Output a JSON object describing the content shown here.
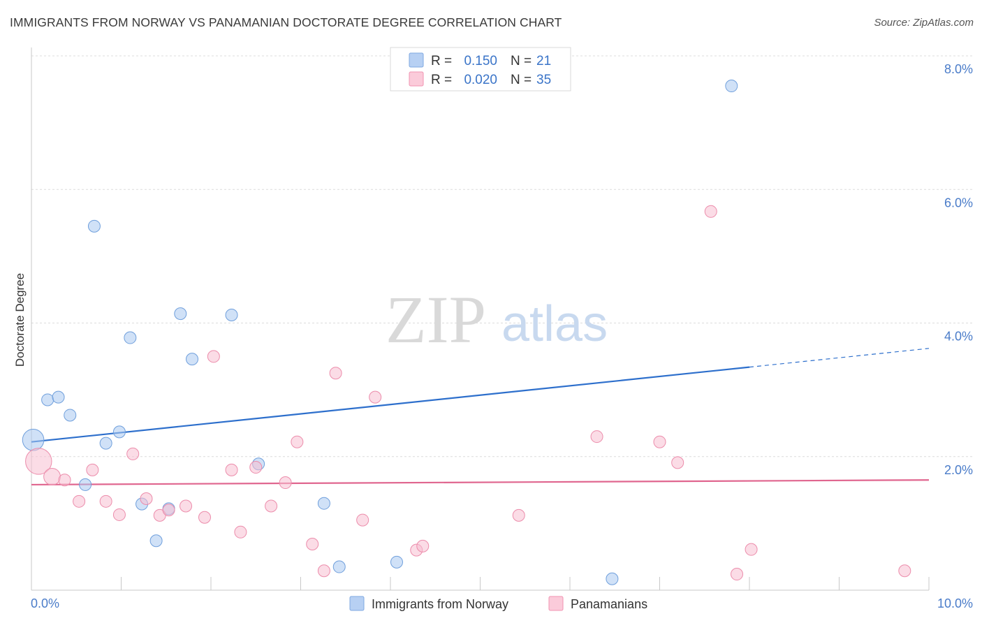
{
  "title": "IMMIGRANTS FROM NORWAY VS PANAMANIAN DOCTORATE DEGREE CORRELATION CHART",
  "source": "Source: ZipAtlas.com",
  "watermark": {
    "zip": "ZIP",
    "atlas": "atlas"
  },
  "chart_data": {
    "type": "scatter",
    "title": "IMMIGRANTS FROM NORWAY VS PANAMANIAN DOCTORATE DEGREE CORRELATION CHART",
    "xlabel": "",
    "ylabel": "Doctorate Degree",
    "xlim": [
      0,
      10
    ],
    "ylim": [
      0,
      8
    ],
    "x_tick_labels": [
      "0.0%",
      "10.0%"
    ],
    "y_ticks": [
      2,
      4,
      6,
      8
    ],
    "y_tick_labels": [
      "2.0%",
      "4.0%",
      "6.0%",
      "8.0%"
    ],
    "grid": true,
    "legend": [
      {
        "r_label": "R =",
        "r_value": "0.150",
        "n_label": "N =",
        "n_value": "21"
      },
      {
        "r_label": "R =",
        "r_value": "0.020",
        "n_label": "N =",
        "n_value": "35"
      }
    ],
    "series": [
      {
        "name": "Immigrants from Norway",
        "color": "#a9c8f0",
        "stroke": "#6f9fdc",
        "line_color": "#2d6fcc",
        "trend": {
          "x": [
            0,
            8
          ],
          "y": [
            2.22,
            3.34
          ],
          "dashed_to_x": 10,
          "dashed_to_y": 3.62
        },
        "points": [
          {
            "x": 0.02,
            "y": 2.25,
            "s": 1.8
          },
          {
            "x": 0.18,
            "y": 2.85,
            "s": 1
          },
          {
            "x": 0.3,
            "y": 2.89,
            "s": 1
          },
          {
            "x": 0.43,
            "y": 2.62,
            "s": 1
          },
          {
            "x": 0.6,
            "y": 1.58,
            "s": 1
          },
          {
            "x": 0.7,
            "y": 5.45,
            "s": 1
          },
          {
            "x": 0.83,
            "y": 2.2,
            "s": 1
          },
          {
            "x": 0.98,
            "y": 2.37,
            "s": 1
          },
          {
            "x": 1.1,
            "y": 3.78,
            "s": 1
          },
          {
            "x": 1.23,
            "y": 1.29,
            "s": 1
          },
          {
            "x": 1.39,
            "y": 0.74,
            "s": 1
          },
          {
            "x": 1.53,
            "y": 1.22,
            "s": 1
          },
          {
            "x": 1.66,
            "y": 4.14,
            "s": 1
          },
          {
            "x": 1.79,
            "y": 3.46,
            "s": 1
          },
          {
            "x": 2.23,
            "y": 4.12,
            "s": 1
          },
          {
            "x": 2.53,
            "y": 1.89,
            "s": 1
          },
          {
            "x": 3.26,
            "y": 1.3,
            "s": 1
          },
          {
            "x": 3.43,
            "y": 0.35,
            "s": 1
          },
          {
            "x": 4.07,
            "y": 0.42,
            "s": 1
          },
          {
            "x": 6.47,
            "y": 0.17,
            "s": 1
          },
          {
            "x": 7.8,
            "y": 7.55,
            "s": 1
          }
        ]
      },
      {
        "name": "Panamanians",
        "color": "#f8c0d2",
        "stroke": "#ec8cab",
        "line_color": "#e0668f",
        "trend": {
          "x": [
            0,
            10
          ],
          "y": [
            1.58,
            1.65
          ]
        },
        "points": [
          {
            "x": 0.08,
            "y": 1.93,
            "s": 2.2
          },
          {
            "x": 0.23,
            "y": 1.7,
            "s": 1.4
          },
          {
            "x": 0.37,
            "y": 1.65,
            "s": 1
          },
          {
            "x": 0.53,
            "y": 1.33,
            "s": 1
          },
          {
            "x": 0.68,
            "y": 1.8,
            "s": 1
          },
          {
            "x": 0.83,
            "y": 1.33,
            "s": 1
          },
          {
            "x": 0.98,
            "y": 1.13,
            "s": 1
          },
          {
            "x": 1.13,
            "y": 2.04,
            "s": 1
          },
          {
            "x": 1.28,
            "y": 1.37,
            "s": 1
          },
          {
            "x": 1.43,
            "y": 1.12,
            "s": 1
          },
          {
            "x": 1.53,
            "y": 1.2,
            "s": 1
          },
          {
            "x": 1.72,
            "y": 1.26,
            "s": 1
          },
          {
            "x": 1.93,
            "y": 1.09,
            "s": 1
          },
          {
            "x": 2.03,
            "y": 3.5,
            "s": 1
          },
          {
            "x": 2.23,
            "y": 1.8,
            "s": 1
          },
          {
            "x": 2.33,
            "y": 0.87,
            "s": 1
          },
          {
            "x": 2.5,
            "y": 1.84,
            "s": 1
          },
          {
            "x": 2.67,
            "y": 1.26,
            "s": 1
          },
          {
            "x": 2.83,
            "y": 1.61,
            "s": 1
          },
          {
            "x": 2.96,
            "y": 2.22,
            "s": 1
          },
          {
            "x": 3.13,
            "y": 0.69,
            "s": 1
          },
          {
            "x": 3.26,
            "y": 0.29,
            "s": 1
          },
          {
            "x": 3.39,
            "y": 3.25,
            "s": 1
          },
          {
            "x": 3.69,
            "y": 1.05,
            "s": 1
          },
          {
            "x": 3.83,
            "y": 2.89,
            "s": 1
          },
          {
            "x": 4.29,
            "y": 0.6,
            "s": 1
          },
          {
            "x": 4.36,
            "y": 0.66,
            "s": 1
          },
          {
            "x": 5.43,
            "y": 1.12,
            "s": 1
          },
          {
            "x": 6.3,
            "y": 2.3,
            "s": 1
          },
          {
            "x": 7.0,
            "y": 2.22,
            "s": 1
          },
          {
            "x": 7.2,
            "y": 1.91,
            "s": 1
          },
          {
            "x": 7.57,
            "y": 5.67,
            "s": 1
          },
          {
            "x": 7.86,
            "y": 0.24,
            "s": 1
          },
          {
            "x": 8.02,
            "y": 0.61,
            "s": 1
          },
          {
            "x": 9.73,
            "y": 0.29,
            "s": 1
          }
        ]
      }
    ]
  }
}
